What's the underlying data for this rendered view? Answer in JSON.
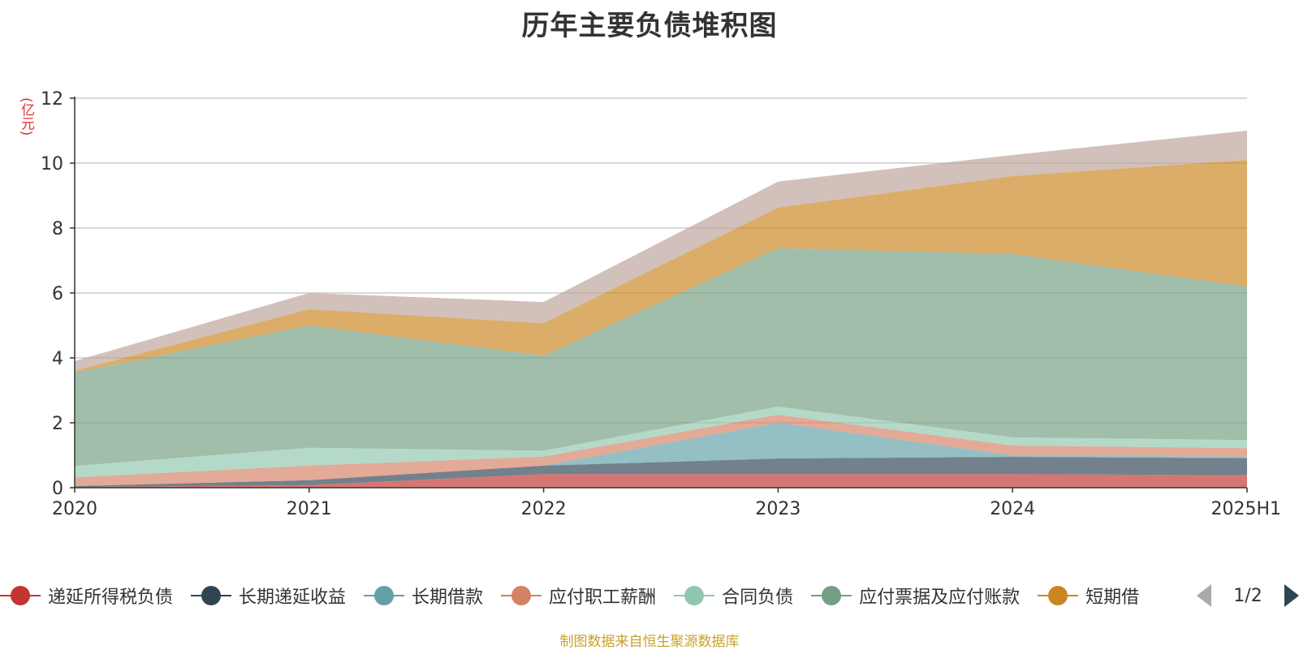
{
  "chart_data": {
    "type": "area",
    "stacked": true,
    "title": "历年主要负债堆积图",
    "y_unit": "(亿元)",
    "categories": [
      "2020",
      "2021",
      "2022",
      "2023",
      "2024",
      "2025H1"
    ],
    "ylim": [
      0,
      12
    ],
    "yticks": [
      0,
      2,
      4,
      6,
      8,
      10,
      12
    ],
    "grid": true,
    "series": [
      {
        "name": "递延所得税负债",
        "color": "#c23531",
        "values": [
          0.02,
          0.08,
          0.42,
          0.42,
          0.42,
          0.38
        ]
      },
      {
        "name": "长期递延收益",
        "color": "#2f4554",
        "values": [
          0.03,
          0.15,
          0.26,
          0.48,
          0.53,
          0.53
        ]
      },
      {
        "name": "长期借款",
        "color": "#61a0a8",
        "values": [
          0.0,
          0.0,
          0.0,
          1.1,
          0.05,
          0.05
        ]
      },
      {
        "name": "应付职工薪酬",
        "color": "#d48265",
        "values": [
          0.27,
          0.45,
          0.28,
          0.25,
          0.3,
          0.26
        ]
      },
      {
        "name": "合同负债",
        "color": "#91c7ae",
        "values": [
          0.35,
          0.55,
          0.18,
          0.25,
          0.25,
          0.25
        ]
      },
      {
        "name": "应付票据及应付账款",
        "color": "#749f83",
        "values": [
          2.88,
          3.77,
          2.93,
          4.88,
          5.65,
          4.73
        ]
      },
      {
        "name": "短期借款",
        "color": "#ca8622",
        "values": [
          0.05,
          0.5,
          1.0,
          1.25,
          2.4,
          3.9
        ]
      },
      {
        "name": "",
        "color": "#bda29a",
        "values": [
          0.3,
          0.5,
          0.65,
          0.8,
          0.65,
          0.9
        ]
      }
    ]
  },
  "legend": {
    "items": [
      {
        "label": "递延所得税负债",
        "color": "#c23531"
      },
      {
        "label": "长期递延收益",
        "color": "#2f4554"
      },
      {
        "label": "长期借款",
        "color": "#61a0a8"
      },
      {
        "label": "应付职工薪酬",
        "color": "#d48265"
      },
      {
        "label": "合同负债",
        "color": "#91c7ae"
      },
      {
        "label": "应付票据及应付账款",
        "color": "#749f83"
      },
      {
        "label": "短期借",
        "color": "#ca8622"
      }
    ],
    "pager": "1/2"
  },
  "source_note": "制图数据来自恒生聚源数据库"
}
